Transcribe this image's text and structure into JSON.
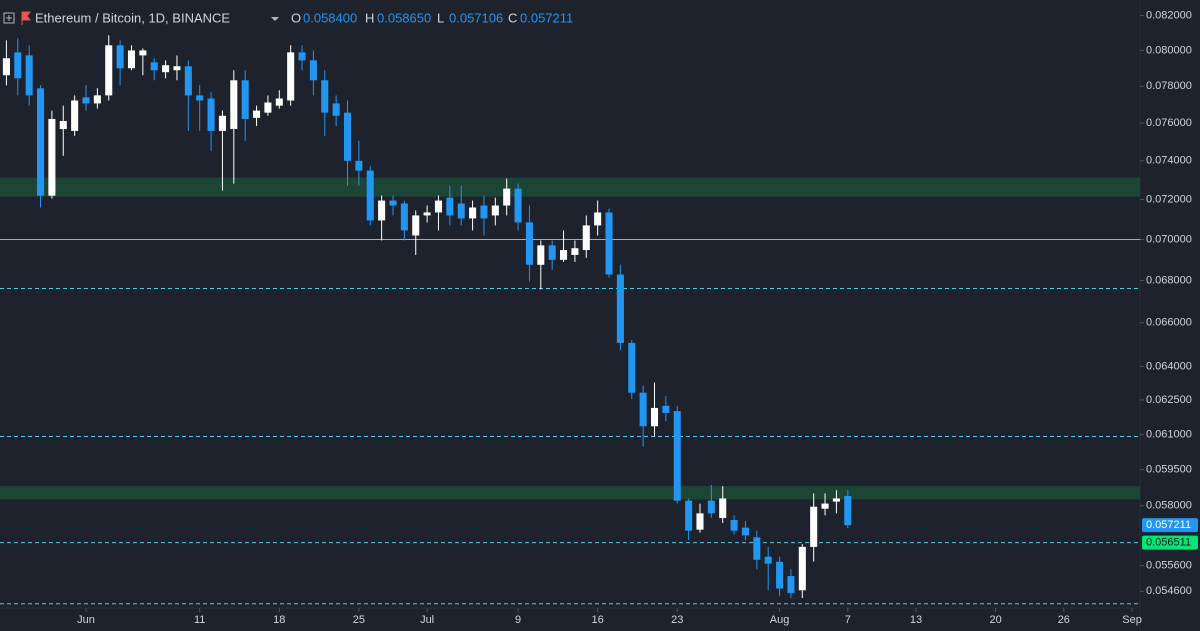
{
  "chart_data": {
    "type": "candlestick",
    "title": "Ethereum / Bitcoin, 1D, BINANCE",
    "header_letters": [
      "O",
      "H",
      "L",
      "C"
    ],
    "last_labels": {
      "open": "0.058400",
      "high": "0.058650",
      "low": "0.057106",
      "close": "0.057211"
    },
    "x": [
      -7,
      -6,
      -5,
      -4,
      -3,
      -2,
      -1,
      0,
      1,
      2,
      3,
      4,
      5,
      6,
      7,
      8,
      9,
      10,
      11,
      12,
      13,
      14,
      15,
      16,
      17,
      18,
      19,
      20,
      21,
      22,
      23,
      24,
      25,
      26,
      27,
      28,
      29,
      30,
      31,
      32,
      33,
      34,
      35,
      36,
      37,
      38,
      39,
      40,
      41,
      42,
      43,
      44,
      45,
      46,
      47,
      48,
      49,
      50,
      51,
      52,
      53,
      54,
      55,
      56,
      57,
      58,
      59,
      60,
      61,
      62,
      63,
      64,
      65,
      66,
      67
    ],
    "open": [
      0.07861,
      0.07989,
      0.07972,
      0.07789,
      0.0722,
      0.07568,
      0.07558,
      0.07739,
      0.07706,
      0.0775,
      0.08029,
      0.079,
      0.07972,
      0.07933,
      0.07878,
      0.07889,
      0.07911,
      0.0775,
      0.07733,
      0.07558,
      0.07568,
      0.07833,
      0.07628,
      0.07656,
      0.07694,
      0.07722,
      0.07989,
      0.07944,
      0.07833,
      0.07706,
      0.07656,
      0.074,
      0.07349,
      0.07095,
      0.07195,
      0.0718,
      0.0702,
      0.0712,
      0.07135,
      0.0721,
      0.0718,
      0.07105,
      0.0717,
      0.0712,
      0.0717,
      0.07256,
      0.07085,
      0.06876,
      0.06971,
      0.069,
      0.06924,
      0.06948,
      0.0707,
      0.07135,
      0.06829,
      0.06507,
      0.06282,
      0.06135,
      0.06224,
      0.06201,
      0.05821,
      0.05703,
      0.05821,
      0.0575,
      0.05742,
      0.05711,
      0.05672,
      0.05595,
      0.05575,
      0.05519,
      0.05464,
      0.05634,
      0.05788,
      0.05817,
      0.0584
    ],
    "high": [
      0.08057,
      0.08069,
      0.08029,
      0.07806,
      0.07667,
      0.07694,
      0.0775,
      0.07806,
      0.07789,
      0.08086,
      0.08057,
      0.08029,
      0.08011,
      0.07956,
      0.07944,
      0.07972,
      0.07944,
      0.07806,
      0.07767,
      0.07667,
      0.07889,
      0.07889,
      0.07694,
      0.0775,
      0.07778,
      0.08029,
      0.08029,
      0.08,
      0.07889,
      0.0775,
      0.07722,
      0.07505,
      0.07374,
      0.07221,
      0.07221,
      0.07195,
      0.07145,
      0.0717,
      0.07221,
      0.07272,
      0.07272,
      0.07195,
      0.07221,
      0.0721,
      0.07308,
      0.07282,
      0.0717,
      0.06995,
      0.06995,
      0.07045,
      0.06995,
      0.0712,
      0.07195,
      0.07155,
      0.06876,
      0.0652,
      0.06314,
      0.06327,
      0.06268,
      0.06224,
      0.0583,
      0.05809,
      0.05886,
      0.05881,
      0.05761,
      0.05738,
      0.05699,
      0.05634,
      0.05595,
      0.05545,
      0.05645,
      0.05851,
      0.05851,
      0.05864,
      0.05865
    ],
    "low": [
      0.07805,
      0.0775,
      0.07694,
      0.0716,
      0.07205,
      0.07426,
      0.07532,
      0.07667,
      0.07678,
      0.07722,
      0.07806,
      0.07889,
      0.07861,
      0.07833,
      0.07844,
      0.07833,
      0.07558,
      0.07558,
      0.07453,
      0.07246,
      0.07282,
      0.07505,
      0.07584,
      0.07639,
      0.07678,
      0.07694,
      0.07889,
      0.0775,
      0.07532,
      0.07584,
      0.07272,
      0.07272,
      0.0707,
      0.06995,
      0.0712,
      0.06995,
      0.06924,
      0.07085,
      0.07045,
      0.0707,
      0.0707,
      0.07045,
      0.0702,
      0.0707,
      0.0712,
      0.07045,
      0.06795,
      0.06757,
      0.06852,
      0.0689,
      0.0689,
      0.0691,
      0.0702,
      0.06814,
      0.06474,
      0.06254,
      0.06047,
      0.06091,
      0.06157,
      0.05809,
      0.05661,
      0.05691,
      0.0575,
      0.0573,
      0.05684,
      0.05661,
      0.05545,
      0.05464,
      0.05441,
      0.05434,
      0.05434,
      0.05576,
      0.05761,
      0.05769,
      0.057106
    ],
    "close": [
      0.07956,
      0.07844,
      0.0775,
      0.0722,
      0.07622,
      0.07611,
      0.07722,
      0.07706,
      0.0775,
      0.08029,
      0.079,
      0.08,
      0.08,
      0.07889,
      0.07917,
      0.07911,
      0.0775,
      0.07722,
      0.07558,
      0.07639,
      0.07833,
      0.07622,
      0.07667,
      0.07711,
      0.07733,
      0.07989,
      0.07944,
      0.07833,
      0.07656,
      0.07639,
      0.074,
      0.07349,
      0.07095,
      0.07195,
      0.0717,
      0.07045,
      0.0712,
      0.07135,
      0.07195,
      0.0712,
      0.07105,
      0.0716,
      0.07105,
      0.0717,
      0.07256,
      0.07085,
      0.06876,
      0.06971,
      0.069,
      0.06948,
      0.06957,
      0.0707,
      0.07135,
      0.06829,
      0.06507,
      0.06282,
      0.06135,
      0.06215,
      0.06193,
      0.05821,
      0.05699,
      0.05769,
      0.05769,
      0.0583,
      0.05699,
      0.0568,
      0.05583,
      0.05568,
      0.05471,
      0.05453,
      0.05634,
      0.05796,
      0.05809,
      0.0583,
      0.057211
    ],
    "up_color": "#ffffff",
    "down_color": "#2196f3",
    "log_scale": true,
    "grid": false,
    "xlim": [
      -7.564,
      92.7
    ],
    "xticks": [
      {
        "value": 0,
        "label": "Jun"
      },
      {
        "value": 10,
        "label": "11"
      },
      {
        "value": 17,
        "label": "18"
      },
      {
        "value": 24,
        "label": "25"
      },
      {
        "value": 30,
        "label": "Jul"
      },
      {
        "value": 38,
        "label": "9"
      },
      {
        "value": 45,
        "label": "16"
      },
      {
        "value": 52,
        "label": "23"
      },
      {
        "value": 61,
        "label": "Aug"
      },
      {
        "value": 67,
        "label": "7"
      },
      {
        "value": 73,
        "label": "13"
      },
      {
        "value": 80,
        "label": "20"
      },
      {
        "value": 86,
        "label": "26"
      },
      {
        "value": 92,
        "label": "Sep"
      }
    ],
    "ylim": [
      0.05396,
      0.0829
    ],
    "yticks": [
      {
        "value": 0.082,
        "label": "0.082000"
      },
      {
        "value": 0.08,
        "label": "0.080000"
      },
      {
        "value": 0.078,
        "label": "0.078000"
      },
      {
        "value": 0.076,
        "label": "0.076000"
      },
      {
        "value": 0.074,
        "label": "0.074000"
      },
      {
        "value": 0.072,
        "label": "0.072000"
      },
      {
        "value": 0.07,
        "label": "0.070000"
      },
      {
        "value": 0.068,
        "label": "0.068000"
      },
      {
        "value": 0.066,
        "label": "0.066000"
      },
      {
        "value": 0.064,
        "label": "0.064000"
      },
      {
        "value": 0.0625,
        "label": "0.062500"
      },
      {
        "value": 0.061,
        "label": "0.061000"
      },
      {
        "value": 0.0595,
        "label": "0.059500"
      },
      {
        "value": 0.058,
        "label": "0.058000"
      },
      {
        "value": 0.0556,
        "label": "0.055600"
      },
      {
        "value": 0.0546,
        "label": "0.054600"
      }
    ],
    "level_color": "#4dd0e1",
    "levels": [
      {
        "value": 0.07,
        "dash": false
      },
      {
        "value": 0.06762,
        "dash": true
      },
      {
        "value": 0.06091,
        "dash": true
      },
      {
        "value": 0.056511,
        "label": "0.056511",
        "dash": true,
        "badge_color": "#00e676"
      },
      {
        "value": 0.05412,
        "dash": true
      }
    ],
    "zone_color": "#1d4536",
    "zones": [
      {
        "from": 0.07313,
        "to": 0.07215
      },
      {
        "from": 0.05881,
        "to": 0.05826
      }
    ]
  }
}
